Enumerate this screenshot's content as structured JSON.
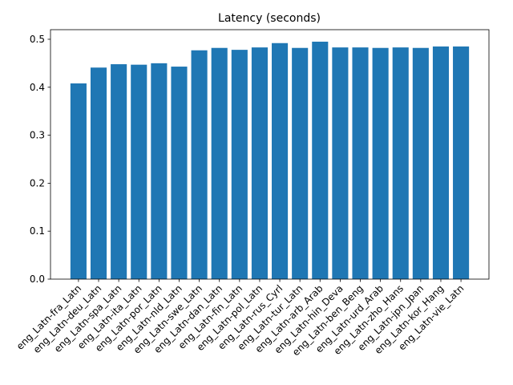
{
  "chart_data": {
    "type": "bar",
    "title": "Latency (seconds)",
    "categories": [
      "eng_Latn-fra_Latn",
      "eng_Latn-deu_Latn",
      "eng_Latn-spa_Latn",
      "eng_Latn-ita_Latn",
      "eng_Latn-por_Latn",
      "eng_Latn-nld_Latn",
      "eng_Latn-swe_Latn",
      "eng_Latn-dan_Latn",
      "eng_Latn-fin_Latn",
      "eng_Latn-pol_Latn",
      "eng_Latn-rus_Cyrl",
      "eng_Latn-tur_Latn",
      "eng_Latn-arb_Arab",
      "eng_Latn-hin_Deva",
      "eng_Latn-ben_Beng",
      "eng_Latn-urd_Arab",
      "eng_Latn-zho_Hans",
      "eng_Latn-jpn_Jpan",
      "eng_Latn-kor_Hang",
      "eng_Latn-vie_Latn"
    ],
    "values": [
      0.408,
      0.441,
      0.448,
      0.447,
      0.45,
      0.443,
      0.477,
      0.482,
      0.478,
      0.483,
      0.492,
      0.482,
      0.495,
      0.483,
      0.483,
      0.482,
      0.483,
      0.482,
      0.485,
      0.485
    ],
    "color": "#1f77b4",
    "ylim": [
      0,
      0.52
    ],
    "yticks": [
      {
        "value": 0,
        "label": "0.0"
      },
      0.1,
      0.2,
      0.3,
      0.4,
      0.5
    ],
    "grid": false
  }
}
